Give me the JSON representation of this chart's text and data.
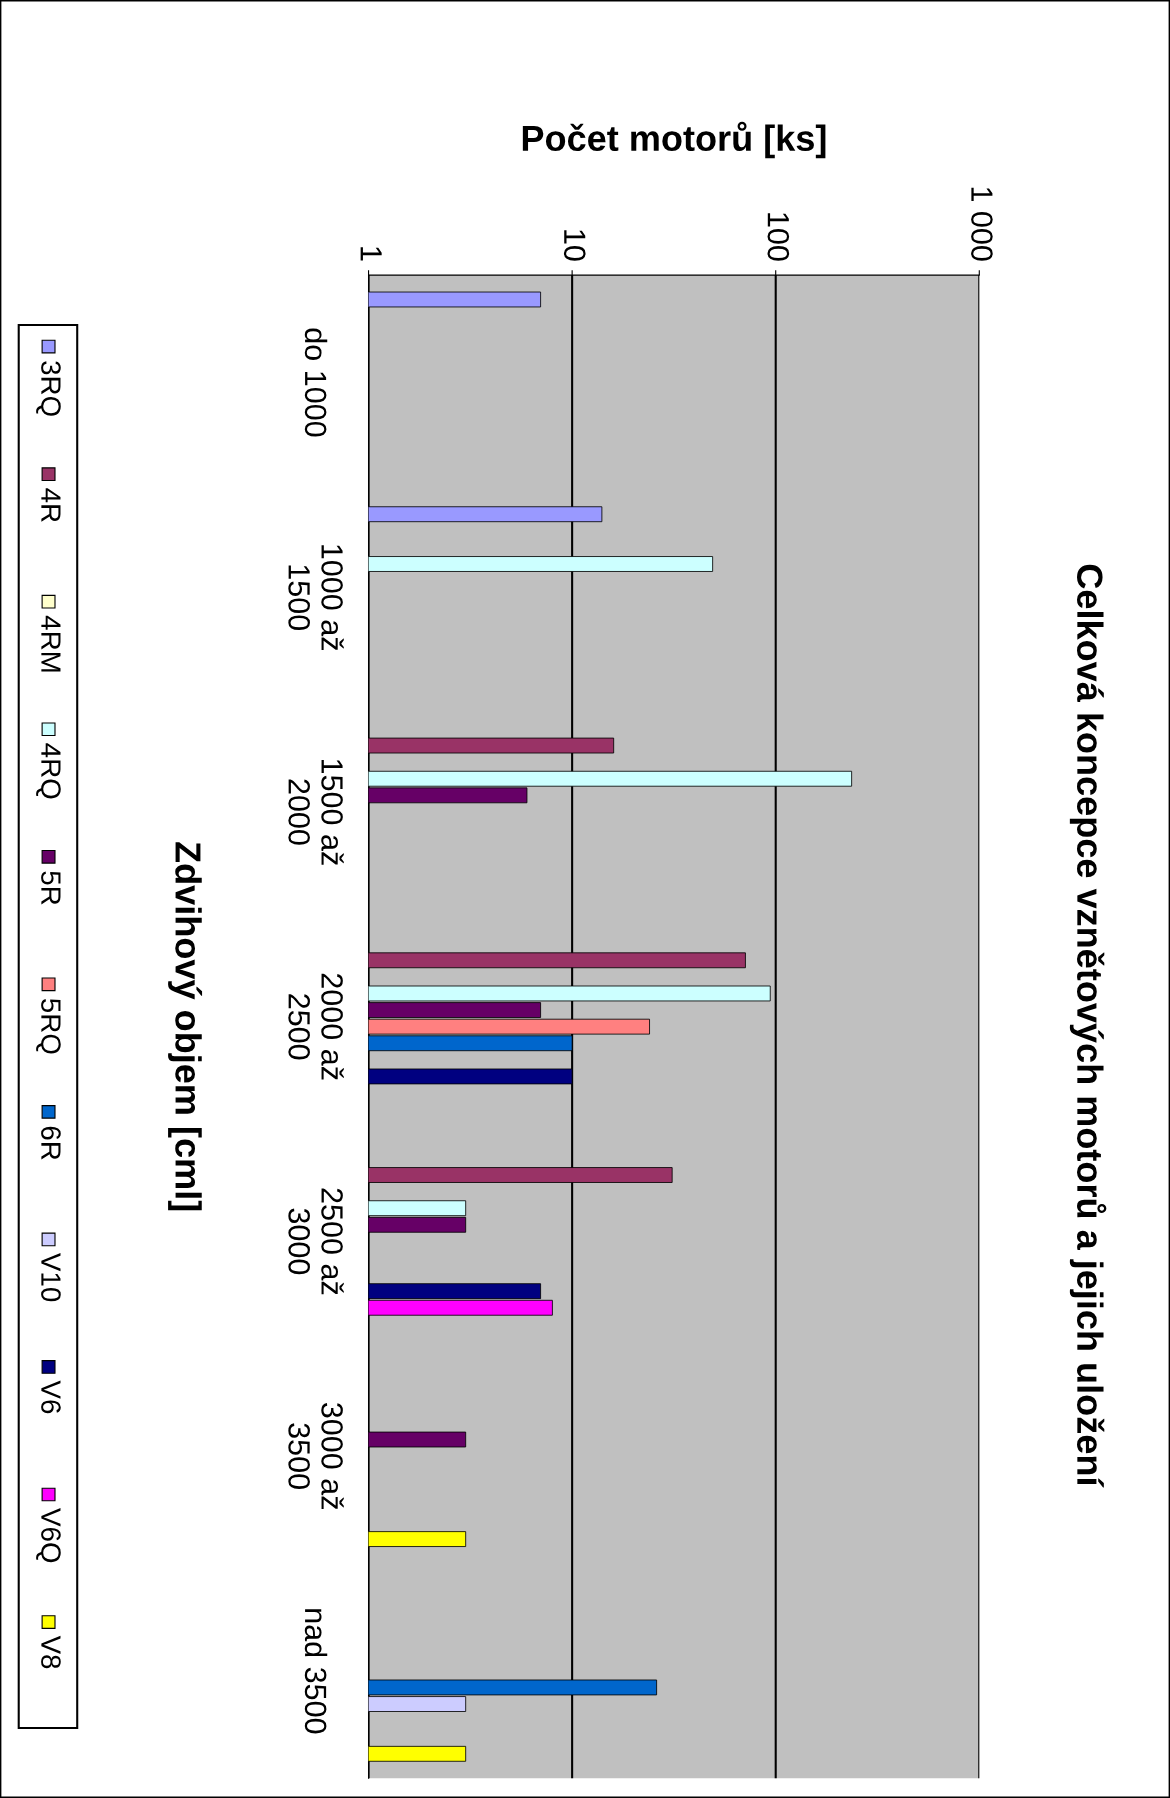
{
  "chart_data": {
    "type": "bar",
    "orientation": "horizontal",
    "title": "Celková koncepce vznětových motorů a jejich uložení",
    "xlabel": "Počet motorů [ks]",
    "ylabel": "Zdvihový objem [cml]",
    "categories": [
      "do 1000",
      "1000 až\n1500",
      "1500 až\n2000",
      "2000 až\n2500",
      "2500 až\n3000",
      "3000 až\n3500",
      "nad 3500"
    ],
    "series": [
      {
        "name": "3RQ",
        "color": "#9999ff",
        "values": [
          7,
          14,
          null,
          null,
          null,
          null,
          null
        ]
      },
      {
        "name": "4R",
        "color": "#993366",
        "values": [
          null,
          null,
          16,
          71,
          31,
          null,
          null
        ]
      },
      {
        "name": "4RM",
        "color": "#ffffcc",
        "values": [
          null,
          null,
          null,
          null,
          null,
          null,
          null
        ]
      },
      {
        "name": "4RQ",
        "color": "#ccffff",
        "values": [
          null,
          49,
          236,
          94,
          3,
          null,
          null
        ]
      },
      {
        "name": "5R",
        "color": "#660066",
        "values": [
          null,
          null,
          6,
          7,
          3,
          3,
          null
        ]
      },
      {
        "name": "5RQ",
        "color": "#ff8080",
        "values": [
          null,
          null,
          null,
          24,
          null,
          null,
          null
        ]
      },
      {
        "name": "6R",
        "color": "#0066cc",
        "values": [
          null,
          null,
          null,
          10,
          null,
          null,
          26
        ]
      },
      {
        "name": "V10",
        "color": "#ccccff",
        "values": [
          null,
          null,
          null,
          null,
          null,
          null,
          3
        ]
      },
      {
        "name": "V6",
        "color": "#000080",
        "values": [
          null,
          null,
          null,
          10,
          7,
          null,
          null
        ]
      },
      {
        "name": "V6Q",
        "color": "#ff00ff",
        "values": [
          null,
          null,
          null,
          null,
          8,
          null,
          null
        ]
      },
      {
        "name": "V8",
        "color": "#ffff00",
        "values": [
          null,
          null,
          null,
          null,
          null,
          3,
          3
        ]
      }
    ],
    "log": "x",
    "xlim": [
      1,
      1000
    ],
    "xticks": [
      1,
      10,
      100,
      {
        "value": 1000,
        "label": "1 000"
      }
    ],
    "grid": "x",
    "legend": "left"
  }
}
